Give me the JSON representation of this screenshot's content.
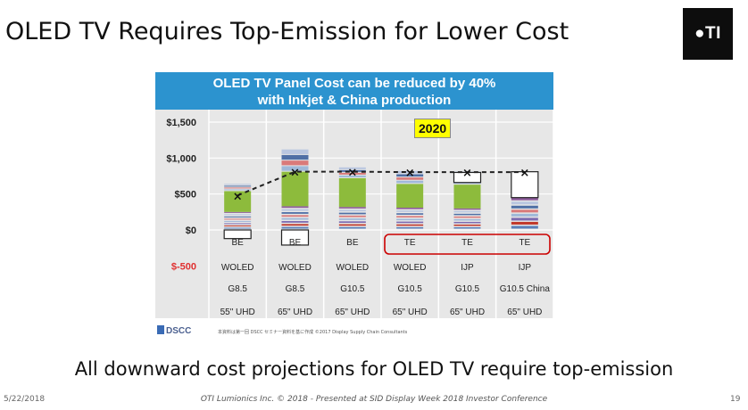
{
  "slide": {
    "title": "OLED TV Requires Top-Emission for Lower Cost",
    "logo": "●TI",
    "subtitle": "All downward cost projections for OLED TV require top-emission",
    "footer_date": "5/22/2018",
    "footer_center": "OTI Lumionics Inc. © 2018 - Presented at SID Display Week 2018 Investor Conference",
    "page_number": "19"
  },
  "colors": {
    "banner": "#2c93cf",
    "green": "#8dbb3c",
    "red": "#c0392b",
    "highlight_box": "#cc0000",
    "neg_label": "#e03030"
  },
  "chart_data": {
    "type": "bar",
    "banner_line1": "OLED TV Panel Cost can be reduced by 40%",
    "banner_line2": "with Inkjet & China production",
    "year_badge": "2020",
    "yticks": [
      "$1,500",
      "$1,000",
      "$500",
      "$0",
      "$-500"
    ],
    "ytick_values": [
      1500,
      1000,
      500,
      0,
      -500
    ],
    "ylim": [
      -600,
      1550
    ],
    "grid": true,
    "categories": [
      {
        "emission": "BE",
        "process": "WOLED",
        "fab": "G8.5",
        "size": "55\" UHD"
      },
      {
        "emission": "BE",
        "process": "WOLED",
        "fab": "G8.5",
        "size": "65\" UHD"
      },
      {
        "emission": "BE",
        "process": "WOLED",
        "fab": "G10.5",
        "size": "65\" UHD"
      },
      {
        "emission": "TE",
        "process": "WOLED",
        "fab": "G10.5",
        "size": "65\" UHD"
      },
      {
        "emission": "TE",
        "process": "IJP",
        "fab": "G10.5",
        "size": "65\" UHD"
      },
      {
        "emission": "TE",
        "process": "IJP",
        "fab": "G10.5 China",
        "size": "65\" UHD"
      }
    ],
    "stack_totals": [
      640,
      1120,
      870,
      820,
      810,
      820
    ],
    "green_segment": [
      [
        250,
        540
      ],
      [
        330,
        810
      ],
      [
        320,
        720
      ],
      [
        310,
        640
      ],
      [
        300,
        630
      ],
      [
        0,
        0
      ]
    ],
    "reduction_box": [
      [
        -120,
        0
      ],
      [
        -210,
        0
      ],
      [
        0,
        0
      ],
      [
        0,
        0
      ],
      [
        660,
        800
      ],
      [
        450,
        810
      ]
    ],
    "cost_line": [
      480,
      810,
      810,
      805,
      805,
      805
    ],
    "highlighted_categories": [
      3,
      4,
      5
    ],
    "source": "DSCC",
    "footnote": "本資料は第一回 DSCC セミナー資料を基に作成 ©2017 Display Supply Chain Consultants"
  }
}
